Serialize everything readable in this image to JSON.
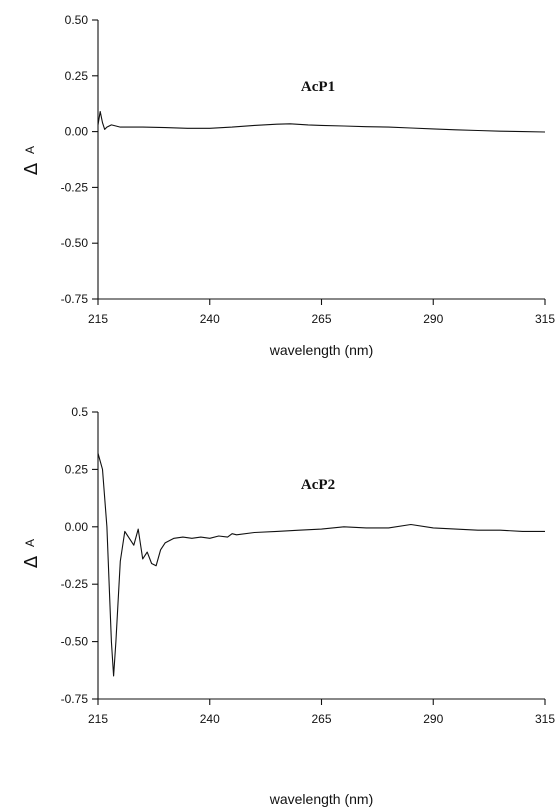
{
  "chart_data": [
    {
      "type": "line",
      "title": "AcP1",
      "xlabel": "wavelength (nm)",
      "ylabel_symbol": "Δ",
      "ylabel_sub": "A",
      "xlim": [
        215,
        315
      ],
      "ylim": [
        -0.75,
        0.5
      ],
      "xticks": [
        "215",
        "240",
        "265",
        "290",
        "315"
      ],
      "yticks": [
        "0.50",
        "0.25",
        "0.00",
        "-0.25",
        "-0.50",
        "-0.75"
      ],
      "grid": false,
      "series": [
        {
          "x": [
            215,
            215.5,
            216,
            216.5,
            217,
            218,
            219,
            220,
            222,
            225,
            230,
            235,
            240,
            245,
            250,
            255,
            258,
            262,
            265,
            270,
            275,
            280,
            285,
            290,
            295,
            300,
            305,
            310,
            315
          ],
          "y": [
            0.03,
            0.09,
            0.04,
            0.01,
            0.02,
            0.03,
            0.025,
            0.02,
            0.02,
            0.02,
            0.018,
            0.015,
            0.015,
            0.02,
            0.028,
            0.033,
            0.035,
            0.03,
            0.028,
            0.025,
            0.022,
            0.02,
            0.016,
            0.012,
            0.008,
            0.005,
            0.002,
            0.0,
            -0.002
          ]
        }
      ]
    },
    {
      "type": "line",
      "title": "AcP2",
      "xlabel": "wavelength (nm)",
      "ylabel_symbol": "Δ",
      "ylabel_sub": "A",
      "xlim": [
        215,
        315
      ],
      "ylim": [
        -0.75,
        0.5
      ],
      "xticks": [
        "215",
        "240",
        "265",
        "290",
        "315"
      ],
      "yticks": [
        "0.5",
        "0.25",
        "0.00",
        "-0.25",
        "-0.50",
        "-0.75"
      ],
      "grid": false,
      "series": [
        {
          "x": [
            215,
            216,
            217,
            218,
            218.5,
            219,
            220,
            221,
            222,
            223,
            224,
            225,
            226,
            227,
            228,
            229,
            230,
            232,
            234,
            236,
            238,
            240,
            242,
            244,
            245,
            246,
            250,
            255,
            260,
            265,
            270,
            275,
            280,
            285,
            290,
            295,
            300,
            305,
            310,
            315
          ],
          "y": [
            0.32,
            0.25,
            0.0,
            -0.5,
            -0.65,
            -0.5,
            -0.15,
            -0.02,
            -0.05,
            -0.08,
            -0.01,
            -0.14,
            -0.11,
            -0.16,
            -0.17,
            -0.1,
            -0.07,
            -0.05,
            -0.045,
            -0.05,
            -0.045,
            -0.05,
            -0.04,
            -0.045,
            -0.03,
            -0.035,
            -0.025,
            -0.02,
            -0.015,
            -0.01,
            0.0,
            -0.005,
            -0.005,
            0.01,
            -0.005,
            -0.01,
            -0.015,
            -0.015,
            -0.02,
            -0.02
          ]
        }
      ]
    }
  ]
}
